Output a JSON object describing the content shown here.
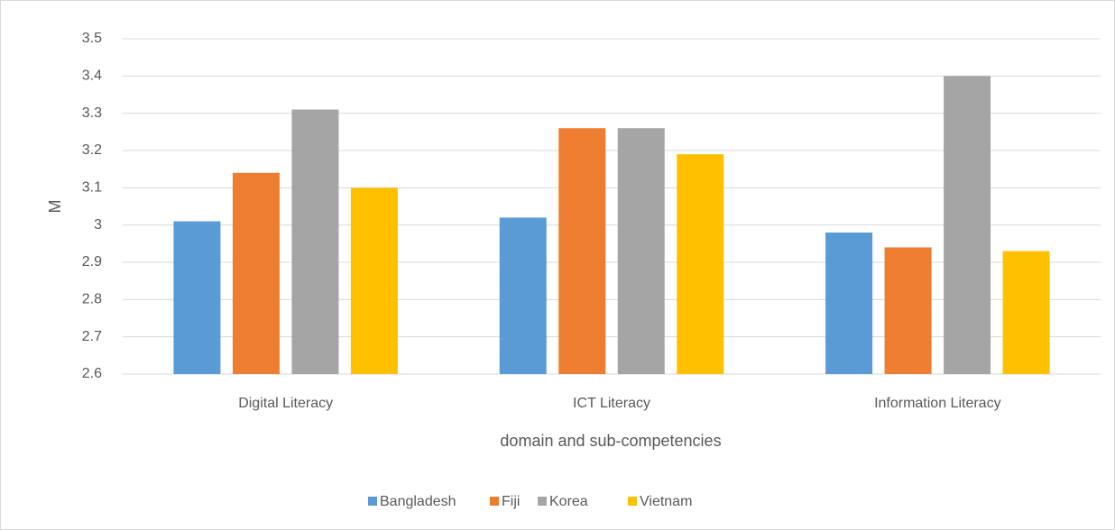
{
  "chart_data": {
    "type": "bar",
    "x_label": "domain and sub-competencies",
    "y_label": "M",
    "categories": [
      "Digital Literacy",
      "ICT Literacy",
      "Information Literacy"
    ],
    "series": [
      {
        "name": "Bangladesh",
        "color": "#5b9bd5",
        "values": [
          3.01,
          3.02,
          2.98
        ]
      },
      {
        "name": "Fiji",
        "color": "#ed7d31",
        "values": [
          3.14,
          3.26,
          2.94
        ]
      },
      {
        "name": "Korea",
        "color": "#a5a5a5",
        "values": [
          3.31,
          3.26,
          3.4
        ]
      },
      {
        "name": "Vietnam",
        "color": "#ffc000",
        "values": [
          3.1,
          3.19,
          2.93
        ]
      }
    ],
    "ylim": [
      2.6,
      3.5
    ],
    "yticks": [
      2.6,
      2.7,
      2.8,
      2.9,
      3,
      3.1,
      3.2,
      3.3,
      3.4,
      3.5
    ],
    "grid": true,
    "legend": "bottom"
  }
}
